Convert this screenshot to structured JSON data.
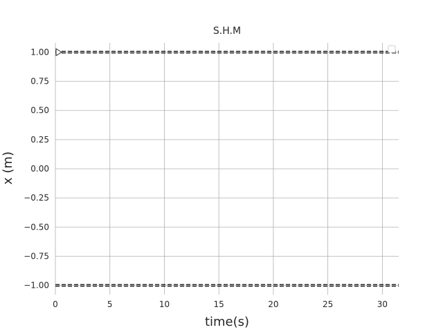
{
  "chart_data": {
    "type": "line",
    "title": "S.H.M",
    "xlabel": "time(s)",
    "ylabel": "x (m)",
    "xlim": [
      0,
      31.5
    ],
    "ylim": [
      -1.08,
      1.08
    ],
    "x_ticks": [
      0,
      5,
      10,
      15,
      20,
      25,
      30
    ],
    "x_tick_labels": [
      "0",
      "5",
      "10",
      "15",
      "20",
      "25",
      "30"
    ],
    "y_ticks": [
      1.0,
      0.75,
      0.5,
      0.25,
      0.0,
      -0.25,
      -0.5,
      -0.75,
      -1.0
    ],
    "y_tick_labels": [
      "1.00",
      "0.75",
      "0.50",
      "0.25",
      "0.00",
      "−0.25",
      "−0.50",
      "−0.75",
      "−1.00"
    ],
    "grid": true,
    "legend": "top-right",
    "series": [
      {
        "x": [
          0,
          31.5
        ],
        "y": [
          1.0,
          1.0
        ],
        "style": "dashed",
        "color": "#000000"
      },
      {
        "x": [
          0,
          31.5
        ],
        "y": [
          -1.0,
          -1.0
        ],
        "style": "dashed",
        "color": "#000000"
      }
    ],
    "marker": {
      "x": 0,
      "y": 1.0,
      "shape": "triangle-right"
    }
  }
}
